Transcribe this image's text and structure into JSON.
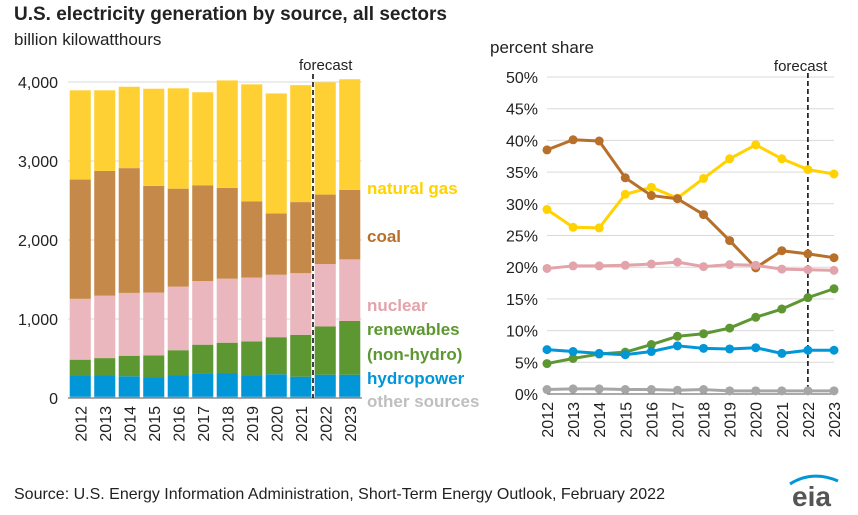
{
  "header": {
    "title": "U.S. electricity generation by source, all sectors",
    "left_subtitle": "billion kilowatthours",
    "right_subtitle": "percent share",
    "forecast_label": "forecast",
    "source": "Source: U.S. Energy Information Administration, Short-Term Energy Outlook, February 2022",
    "logo_text": "eia"
  },
  "colors": {
    "other": "#bfbfbf",
    "other_line": "#a6a6a6",
    "hydropower": "#0096d7",
    "renewables": "#5d9732",
    "nuclear": "#e9b7bd",
    "nuclear_line": "#e2a3aa",
    "coal": "#c58a4a",
    "coal_line": "#b86f2a",
    "natural_gas": "#ffd033",
    "natural_gas_line": "#ffd200"
  },
  "labels": {
    "natural_gas": "natural gas",
    "coal": "coal",
    "nuclear": "nuclear",
    "renewables_1": "renewables",
    "renewables_2": "(non-hydro)",
    "hydropower": "hydropower",
    "other": "other sources"
  },
  "chart_data": [
    {
      "type": "bar",
      "stacked": true,
      "categories": [
        "2012",
        "2013",
        "2014",
        "2015",
        "2016",
        "2017",
        "2018",
        "2019",
        "2020",
        "2021",
        "2022",
        "2023"
      ],
      "ylim": [
        0,
        4000
      ],
      "yticks": [
        "0",
        "1,000",
        "2,000",
        "3,000",
        "4,000"
      ],
      "forecast_start": "2022",
      "series": [
        {
          "name": "other sources",
          "key": "other",
          "values": [
            15,
            15,
            15,
            15,
            15,
            15,
            15,
            15,
            15,
            15,
            15,
            15
          ]
        },
        {
          "name": "hydropower",
          "key": "hydropower",
          "values": [
            275,
            270,
            260,
            250,
            270,
            300,
            295,
            275,
            285,
            255,
            280,
            280
          ]
        },
        {
          "name": "renewables (non-hydro)",
          "key": "renewables",
          "values": [
            195,
            220,
            260,
            275,
            320,
            360,
            390,
            425,
            470,
            530,
            610,
            680
          ]
        },
        {
          "name": "nuclear",
          "key": "nuclear",
          "values": [
            770,
            790,
            795,
            795,
            805,
            805,
            810,
            810,
            790,
            780,
            790,
            780
          ]
        },
        {
          "name": "coal",
          "key": "coal",
          "values": [
            1510,
            1580,
            1580,
            1350,
            1240,
            1210,
            1150,
            965,
            775,
            900,
            880,
            880
          ]
        },
        {
          "name": "natural gas",
          "key": "natural_gas",
          "values": [
            1130,
            1020,
            1030,
            1230,
            1270,
            1180,
            1360,
            1480,
            1520,
            1480,
            1420,
            1400
          ]
        }
      ]
    },
    {
      "type": "line",
      "x": [
        "2012",
        "2013",
        "2014",
        "2015",
        "2016",
        "2017",
        "2018",
        "2019",
        "2020",
        "2021",
        "2022",
        "2023"
      ],
      "ylim": [
        0,
        50
      ],
      "yticks": [
        "0%",
        "5%",
        "10%",
        "15%",
        "20%",
        "25%",
        "30%",
        "35%",
        "40%",
        "45%",
        "50%"
      ],
      "forecast_start": "2022",
      "series": [
        {
          "name": "natural gas",
          "key": "natural_gas_line",
          "values": [
            29.1,
            26.3,
            26.2,
            31.5,
            32.6,
            30.9,
            34.0,
            37.1,
            39.3,
            37.1,
            35.4,
            34.7
          ]
        },
        {
          "name": "coal",
          "key": "coal_line",
          "values": [
            38.5,
            40.1,
            39.9,
            34.1,
            31.3,
            30.8,
            28.3,
            24.2,
            19.9,
            22.6,
            22.1,
            21.5
          ]
        },
        {
          "name": "nuclear",
          "key": "nuclear_line",
          "values": [
            19.8,
            20.2,
            20.2,
            20.3,
            20.5,
            20.8,
            20.1,
            20.4,
            20.3,
            19.7,
            19.6,
            19.5
          ]
        },
        {
          "name": "renewables (non-hydro)",
          "key": "renewables",
          "values": [
            4.8,
            5.6,
            6.3,
            6.6,
            7.8,
            9.1,
            9.5,
            10.4,
            12.1,
            13.4,
            15.2,
            16.6
          ]
        },
        {
          "name": "hydropower",
          "key": "hydropower",
          "values": [
            7.0,
            6.7,
            6.4,
            6.2,
            6.7,
            7.6,
            7.2,
            7.1,
            7.3,
            6.4,
            6.9,
            6.9
          ]
        },
        {
          "name": "other sources",
          "key": "other_line",
          "values": [
            0.7,
            0.8,
            0.8,
            0.7,
            0.7,
            0.6,
            0.7,
            0.5,
            0.5,
            0.5,
            0.5,
            0.5
          ]
        }
      ]
    }
  ]
}
